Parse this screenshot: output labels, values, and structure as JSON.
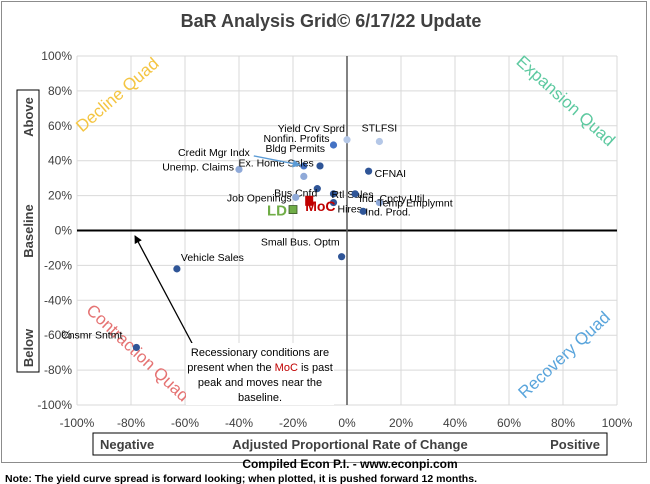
{
  "chart_data": {
    "type": "scatter",
    "title": "BaR Analysis Grid© 6/17/22 Update",
    "xlim": [
      -100,
      100
    ],
    "ylim": [
      -100,
      100
    ],
    "x_ticks": [
      "-100%",
      "-80%",
      "-60%",
      "-40%",
      "-20%",
      "0%",
      "20%",
      "40%",
      "60%",
      "80%",
      "100%"
    ],
    "y_ticks": [
      "100%",
      "80%",
      "60%",
      "40%",
      "20%",
      "0%",
      "-20%",
      "-40%",
      "-60%",
      "-80%",
      "-100%"
    ],
    "grid": true,
    "x_axis_box": {
      "left": "Negative",
      "center": "Adjusted Proportional Rate of Change",
      "right": "Positive"
    },
    "y_axis_box": {
      "top": "Above",
      "middle": "Baseline",
      "bottom": "Below"
    },
    "quadrants": {
      "top_left": {
        "label": "Decline Quad",
        "color": "#f4c542"
      },
      "top_right": {
        "label": "Expansion Quad",
        "color": "#5dc9a0"
      },
      "bottom_left": {
        "label": "Contraction Quad",
        "color": "#e57373"
      },
      "bottom_right": {
        "label": "Recovery Quad",
        "color": "#5aa5dc"
      }
    },
    "points": [
      {
        "label": "Yield Crv Sprd",
        "x": 0,
        "y": 52,
        "color": "#b4c7e7"
      },
      {
        "label": "Nonfin. Profits",
        "x": -5,
        "y": 49,
        "color": "#4472c4"
      },
      {
        "label": "STLFSI",
        "x": 12,
        "y": 51,
        "color": "#b4c7e7"
      },
      {
        "label": "Credit Mgr Indx",
        "x": -16,
        "y": 37,
        "color": "#4472c4"
      },
      {
        "label": "Bldg Permits",
        "x": -10,
        "y": 37,
        "color": "#2f5597"
      },
      {
        "label": "Unemp. Claims",
        "x": -40,
        "y": 35,
        "color": "#8fa9d8"
      },
      {
        "label": "CFNAI",
        "x": 8,
        "y": 34,
        "color": "#2f5597"
      },
      {
        "label": "Ex. Home Sales",
        "x": -16,
        "y": 31,
        "color": "#8fa9d8"
      },
      {
        "label": "Bus Cnfd",
        "x": -11,
        "y": 24,
        "color": "#2f5597"
      },
      {
        "label": "Rtl Sales",
        "x": -5,
        "y": 21,
        "color": "#2f5597"
      },
      {
        "label": "Ind. Cpcty Util.",
        "x": 3,
        "y": 21,
        "color": "#2f5597"
      },
      {
        "label": "Job Openings",
        "x": -19,
        "y": 19,
        "color": "#8fa9d8"
      },
      {
        "label": "Temp Emplymnt",
        "x": 12,
        "y": 16,
        "color": "#8fa9d8"
      },
      {
        "label": "Hires",
        "x": -5,
        "y": 16,
        "color": "#2f5597"
      },
      {
        "label": "Ind. Prod.",
        "x": 6,
        "y": 11,
        "color": "#2f5597"
      },
      {
        "label": "Small Bus. Optm",
        "x": -2,
        "y": -15,
        "color": "#2f5597"
      },
      {
        "label": "Vehicle Sales",
        "x": -63,
        "y": -22,
        "color": "#2f5597"
      },
      {
        "label": "Cnsmr Sntmt",
        "x": -78,
        "y": -67,
        "color": "#2f5597"
      }
    ],
    "ld": {
      "label": "LD",
      "x": -20,
      "y": 12,
      "color": "#70ad47"
    },
    "moc": {
      "label": "MoC",
      "x": -14,
      "y": 17,
      "color": "#c00000"
    },
    "annotation": {
      "lines": [
        "Recessionary conditions are",
        "present when the MoC is past",
        "peak and moves near the",
        "baseline."
      ],
      "highlight": "MoC",
      "highlight_color": "#c00000"
    }
  },
  "footer": {
    "credit": "Compiled Econ P.I. - www.econpi.com",
    "note": "Note: The yield curve spread is forward looking; when plotted, it is pushed forward 12 months."
  }
}
